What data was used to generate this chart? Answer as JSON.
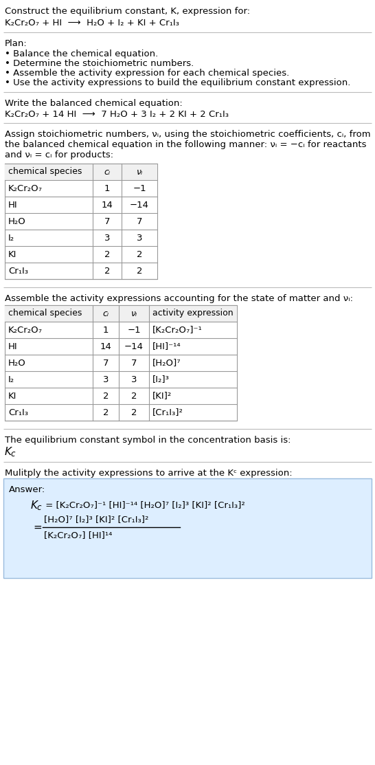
{
  "title_line1": "Construct the equilibrium constant, K, expression for:",
  "title_line2": "K₂Cr₂O₇ + HI  ⟶  H₂O + I₂ + KI + Cr₁I₃",
  "plan_header": "Plan:",
  "plan_items": [
    "• Balance the chemical equation.",
    "• Determine the stoichiometric numbers.",
    "• Assemble the activity expression for each chemical species.",
    "• Use the activity expressions to build the equilibrium constant expression."
  ],
  "balanced_header": "Write the balanced chemical equation:",
  "balanced_eq": "K₂Cr₂O₇ + 14 HI  ⟶  7 H₂O + 3 I₂ + 2 KI + 2 Cr₁I₃",
  "stoich_intro": "Assign stoichiometric numbers, νᵢ, using the stoichiometric coefficients, cᵢ, from\nthe balanced chemical equation in the following manner: νᵢ = −cᵢ for reactants\nand νᵢ = cᵢ for products:",
  "table1_cols": [
    "chemical species",
    "cᵢ",
    "νᵢ"
  ],
  "table1_rows": [
    [
      "K₂Cr₂O₇",
      "1",
      "−1"
    ],
    [
      "HI",
      "14",
      "−14"
    ],
    [
      "H₂O",
      "7",
      "7"
    ],
    [
      "I₂",
      "3",
      "3"
    ],
    [
      "KI",
      "2",
      "2"
    ],
    [
      "Cr₁I₃",
      "2",
      "2"
    ]
  ],
  "activity_intro": "Assemble the activity expressions accounting for the state of matter and νᵢ:",
  "table2_cols": [
    "chemical species",
    "cᵢ",
    "νᵢ",
    "activity expression"
  ],
  "table2_rows": [
    [
      "K₂Cr₂O₇",
      "1",
      "−1",
      "[K₂Cr₂O₇]⁻¹"
    ],
    [
      "HI",
      "14",
      "−14",
      "[HI]⁻¹⁴"
    ],
    [
      "H₂O",
      "7",
      "7",
      "[H₂O]⁷"
    ],
    [
      "I₂",
      "3",
      "3",
      "[I₂]³"
    ],
    [
      "KI",
      "2",
      "2",
      "[KI]²"
    ],
    [
      "Cr₁I₃",
      "2",
      "2",
      "[Cr₁I₃]²"
    ]
  ],
  "kc_header": "The equilibrium constant symbol in the concentration basis is:",
  "multiply_header": "Mulitply the activity expressions to arrive at the Kᶜ expression:",
  "answer_label": "Answer:",
  "bg_color": "#ffffff",
  "answer_bg_color": "#ddeeff",
  "sep_color": "#bbbbbb"
}
